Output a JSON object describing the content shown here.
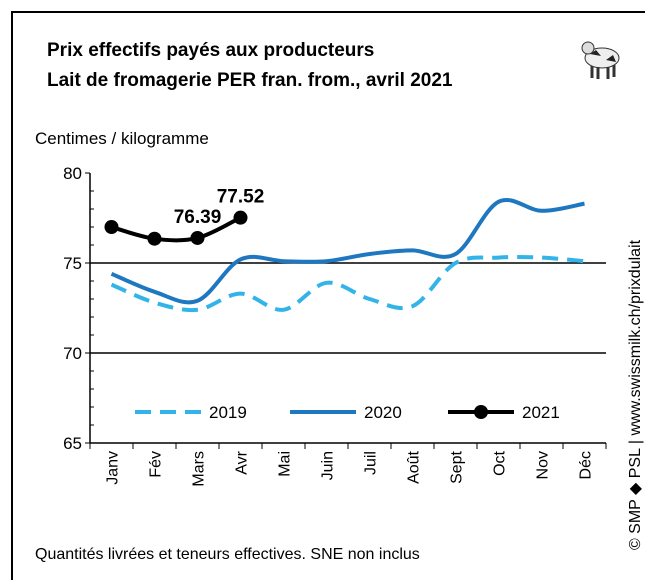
{
  "chart_data": {
    "type": "line",
    "title": [
      "Prix effectifs payés aux producteurs",
      "Lait de fromagerie PER fran. from., avril 2021"
    ],
    "y_label": "Centimes / kilogramme",
    "footnote": "Quantités livrées et teneurs effectives.  SNE non inclus",
    "source": "© SMP ◆ PSL | www.swissmilk.ch/prixdulait",
    "categories": [
      "Janv",
      "Fév",
      "Mars",
      "Avr",
      "Mai",
      "Juin",
      "Juil",
      "Août",
      "Sept",
      "Oct",
      "Nov",
      "Déc"
    ],
    "series": [
      {
        "name": "2019",
        "color": "#33b4e8",
        "dash": true,
        "values": [
          73.8,
          72.8,
          72.4,
          73.3,
          72.4,
          73.9,
          73.0,
          72.6,
          75.0,
          75.3,
          75.3,
          75.1
        ]
      },
      {
        "name": "2020",
        "color": "#1f77c0",
        "values": [
          74.4,
          73.4,
          72.9,
          75.2,
          75.1,
          75.1,
          75.5,
          75.7,
          75.5,
          78.4,
          77.9,
          78.3
        ]
      },
      {
        "name": "2021",
        "color": "#000000",
        "markers": true,
        "values": [
          77.0,
          76.35,
          76.39,
          77.52,
          null,
          null,
          null,
          null,
          null,
          null,
          null,
          null
        ],
        "value_labels": [
          null,
          null,
          "76.39",
          "77.52",
          null,
          null,
          null,
          null,
          null,
          null,
          null,
          null
        ]
      }
    ],
    "ylim": [
      65,
      80
    ],
    "yticks": [
      65,
      70,
      75,
      80
    ],
    "grid": true
  }
}
